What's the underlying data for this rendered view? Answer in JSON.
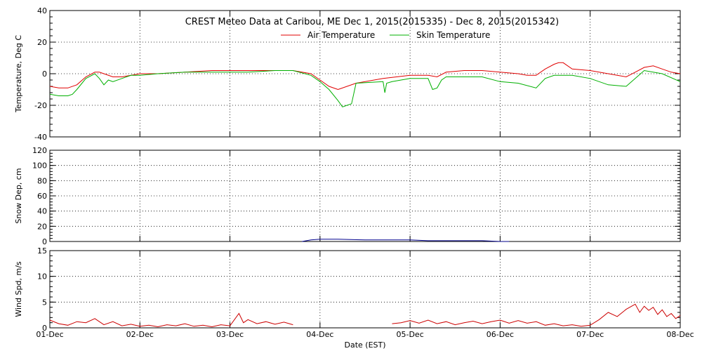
{
  "title": "CREST Meteo Data at Caribou, ME   Dec  1, 2015(2015335) - Dec  8, 2015(2015342)",
  "xlabel": "Date (EST)",
  "colors": {
    "air": "#e00000",
    "skin": "#00b000",
    "snow": "#00008b",
    "wind": "#cc0000",
    "grid": "#000000"
  },
  "chart_data": [
    {
      "type": "line",
      "panel": "temperature",
      "ylabel": "Temperature, Deg C",
      "ylim": [
        -40,
        40
      ],
      "yticks": [
        -40,
        -20,
        0,
        20,
        40
      ],
      "xlim": [
        0,
        7
      ],
      "x_tick_labels": [
        "01-Dec",
        "02-Dec",
        "03-Dec",
        "04-Dec",
        "05-Dec",
        "06-Dec",
        "07-Dec",
        "08-Dec"
      ],
      "grid": true,
      "legend": "top-center",
      "series": [
        {
          "name": "Air Temperature",
          "x": [
            0,
            0.1,
            0.2,
            0.3,
            0.4,
            0.5,
            0.55,
            0.6,
            0.7,
            0.8,
            0.9,
            1.0,
            1.2,
            1.5,
            1.8,
            2.0,
            2.2,
            2.5,
            2.7,
            2.9,
            3.0,
            3.1,
            3.2,
            3.4,
            3.7,
            4.0,
            4.2,
            4.3,
            4.4,
            4.6,
            4.8,
            5.0,
            5.2,
            5.3,
            5.4,
            5.5,
            5.6,
            5.65,
            5.7,
            5.8,
            6.0,
            6.1,
            6.2,
            6.3,
            6.4,
            6.5,
            6.6,
            6.7,
            6.8,
            6.9,
            7.0
          ],
          "values": [
            -8,
            -9,
            -9,
            -7,
            -2,
            1,
            1,
            0,
            -2,
            -2,
            -1,
            0,
            0,
            1,
            2,
            2,
            2,
            2,
            2,
            0,
            -4,
            -8,
            -10,
            -6,
            -3,
            -1,
            -1,
            -2,
            1,
            2,
            2,
            1,
            0,
            -1,
            -1,
            3,
            6,
            7,
            7,
            3,
            2,
            1,
            0,
            -1,
            -2,
            1,
            4,
            5,
            3,
            1,
            0
          ]
        },
        {
          "name": "Skin Temperature",
          "x": [
            0,
            0.1,
            0.2,
            0.25,
            0.3,
            0.4,
            0.5,
            0.55,
            0.6,
            0.65,
            0.7,
            0.8,
            0.9,
            1.0,
            1.2,
            1.5,
            1.8,
            2.0,
            2.2,
            2.5,
            2.7,
            2.9,
            3.0,
            3.1,
            3.2,
            3.25,
            3.3,
            3.35,
            3.4,
            3.7,
            3.72,
            3.74,
            3.8,
            4.0,
            4.2,
            4.25,
            4.3,
            4.35,
            4.4,
            4.8,
            5.0,
            5.2,
            5.4,
            5.5,
            5.6,
            5.8,
            6.0,
            6.2,
            6.4,
            6.6,
            6.8,
            7.0
          ],
          "values": [
            -13,
            -14,
            -14,
            -13,
            -10,
            -3,
            0,
            -3,
            -7,
            -4,
            -5,
            -3,
            -1,
            -1,
            0,
            1,
            1,
            1,
            1,
            2,
            2,
            -1,
            -5,
            -10,
            -17,
            -21,
            -20,
            -19,
            -6,
            -5,
            -12,
            -6,
            -5,
            -3,
            -3,
            -10,
            -9,
            -4,
            -2,
            -2,
            -5,
            -6,
            -9,
            -3,
            -1,
            -1,
            -3,
            -7,
            -8,
            2,
            0,
            -5
          ]
        }
      ]
    },
    {
      "type": "line",
      "panel": "snow_depth",
      "ylabel": "Snow Dep, cm",
      "ylim": [
        0,
        120
      ],
      "yticks": [
        0,
        20,
        40,
        60,
        80,
        100,
        120
      ],
      "grid": true,
      "series": [
        {
          "x": [
            2.8,
            2.9,
            3.0,
            3.2,
            3.5,
            3.8,
            4.0,
            4.2,
            4.5,
            4.8,
            5.0,
            5.1
          ],
          "values": [
            0,
            2,
            3,
            3,
            2,
            2,
            2,
            1,
            1,
            1,
            0,
            0
          ]
        }
      ]
    },
    {
      "type": "line",
      "panel": "wind_speed",
      "ylabel": "Wind Spd, m/s",
      "ylim": [
        0,
        15
      ],
      "yticks": [
        0,
        5,
        10,
        15
      ],
      "grid": true,
      "series": [
        {
          "x": [
            0,
            0.1,
            0.2,
            0.3,
            0.4,
            0.5,
            0.6,
            0.7,
            0.8,
            0.9,
            1.0,
            1.1,
            1.2,
            1.3,
            1.4,
            1.5,
            1.6,
            1.7,
            1.8,
            1.9,
            2.0,
            2.1,
            2.15,
            2.2,
            2.3,
            2.4,
            2.5,
            2.6,
            2.7,
            2.8,
            2.9,
            3.0,
            3.1,
            3.2,
            3.3,
            3.4,
            3.5,
            3.6,
            3.7,
            3.8,
            3.9,
            4.0,
            4.1,
            4.2,
            4.3,
            4.4,
            4.5,
            4.6,
            4.7,
            4.8,
            4.9,
            5.0,
            5.1,
            5.2,
            5.3,
            5.4,
            5.5,
            5.6,
            5.7,
            5.8,
            5.9,
            6.0,
            6.1,
            6.2,
            6.3,
            6.4,
            6.5,
            6.55,
            6.6,
            6.65,
            6.7,
            6.75,
            6.8,
            6.85,
            6.9,
            6.95,
            7.0
          ],
          "values": [
            1.5,
            0.8,
            0.5,
            1.2,
            1.0,
            1.8,
            0.6,
            1.2,
            0.4,
            0.7,
            0.3,
            0.5,
            0.2,
            0.6,
            0.4,
            0.8,
            0.3,
            0.5,
            0.2,
            0.6,
            0.4,
            2.8,
            1.0,
            1.6,
            0.8,
            1.2,
            0.7,
            1.1,
            0.6,
            null,
            null,
            null,
            null,
            null,
            null,
            null,
            null,
            null,
            null,
            0.8,
            1.0,
            1.4,
            0.9,
            1.5,
            0.8,
            1.2,
            0.6,
            1.0,
            1.3,
            0.8,
            1.2,
            1.5,
            0.9,
            1.4,
            0.9,
            1.2,
            0.5,
            0.8,
            0.4,
            0.6,
            0.3,
            0.5,
            1.6,
            3.0,
            2.2,
            3.6,
            4.6,
            3.0,
            4.2,
            3.4,
            4.0,
            2.6,
            3.5,
            2.2,
            2.8,
            1.8,
            2.4
          ]
        }
      ]
    }
  ]
}
